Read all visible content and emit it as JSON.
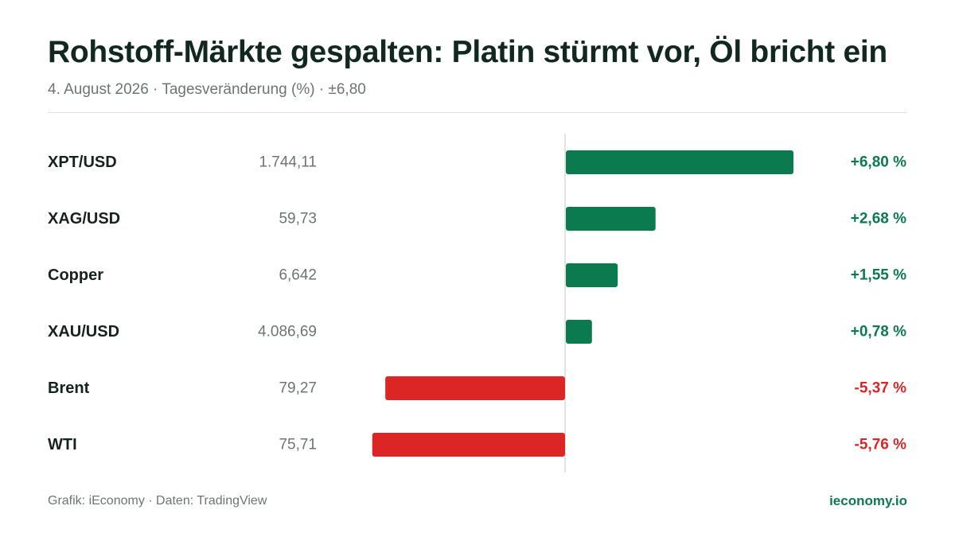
{
  "header": {
    "title": "Rohstoff-Märkte gespalten: Platin stürmt vor, Öl bricht ein",
    "subtitle": "4. August 2026 · Tagesveränderung (%) · ±6,80"
  },
  "colors": {
    "positive": "#0c7a4f",
    "negative": "#dc2626",
    "axis": "#d9dcdb"
  },
  "chart_data": {
    "type": "bar",
    "orientation": "horizontal",
    "value_unit": "%",
    "xlim": [
      -6.8,
      6.8
    ],
    "categories": [
      "XPT/USD",
      "XAG/USD",
      "Copper",
      "XAU/USD",
      "Brent",
      "WTI"
    ],
    "prices": [
      "1.744,11",
      "59,73",
      "6,642",
      "4.086,69",
      "79,27",
      "75,71"
    ],
    "values": [
      6.8,
      2.68,
      1.55,
      0.78,
      -5.37,
      -5.76
    ],
    "value_labels": [
      "+6,80 %",
      "+2,68 %",
      "+1,55 %",
      "+0,78 %",
      "-5,37 %",
      "-5,76 %"
    ],
    "grid": false,
    "legend": "none"
  },
  "footer": {
    "source": "Grafik: iEconomy · Daten: TradingView",
    "brand": "ieconomy.io"
  }
}
